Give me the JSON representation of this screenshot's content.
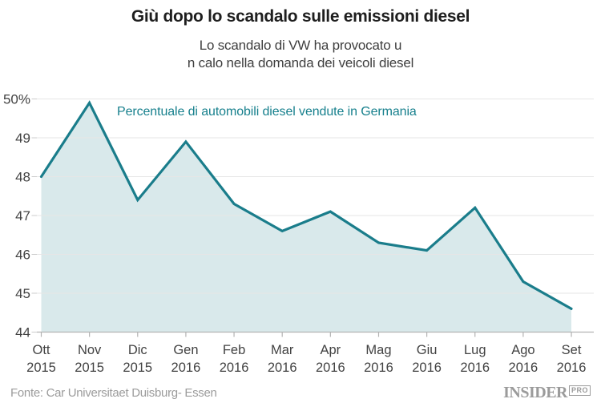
{
  "header": {
    "title": "Giù dopo lo scandalo sulle emissioni diesel",
    "subtitle_line1": "Lo scandalo di VW ha provocato u",
    "subtitle_line2": "n calo nella domanda dei veicoli diesel"
  },
  "chart_data": {
    "type": "area",
    "series_label": "Percentuale di automobili diesel vendute in Germania",
    "categories": [
      {
        "month": "Ott",
        "year": "2015"
      },
      {
        "month": "Nov",
        "year": "2015"
      },
      {
        "month": "Dic",
        "year": "2015"
      },
      {
        "month": "Gen",
        "year": "2016"
      },
      {
        "month": "Feb",
        "year": "2016"
      },
      {
        "month": "Mar",
        "year": "2016"
      },
      {
        "month": "Apr",
        "year": "2016"
      },
      {
        "month": "Mag",
        "year": "2016"
      },
      {
        "month": "Giu",
        "year": "2016"
      },
      {
        "month": "Lug",
        "year": "2016"
      },
      {
        "month": "Ago",
        "year": "2016"
      },
      {
        "month": "Set",
        "year": "2016"
      }
    ],
    "values": [
      48.0,
      49.9,
      47.4,
      48.9,
      47.3,
      46.6,
      47.1,
      46.3,
      46.1,
      47.2,
      45.3,
      44.6
    ],
    "unit": "%",
    "y_ticks": [
      {
        "value": 50,
        "label": "50%"
      },
      {
        "value": 49,
        "label": "49"
      },
      {
        "value": 48,
        "label": "48"
      },
      {
        "value": 47,
        "label": "47"
      },
      {
        "value": 46,
        "label": "46"
      },
      {
        "value": 45,
        "label": "45"
      },
      {
        "value": 44,
        "label": "44"
      }
    ],
    "ylim": [
      44,
      50.3
    ],
    "grid": true,
    "legend_position": "inside-top-left",
    "colors": {
      "line": "#1a7d8b",
      "fill": "rgba(27,125,139,0.17)",
      "gridline": "#e6e6e6",
      "axis_line": "#b3b3b3",
      "tick": "#cccccc",
      "axis_label": "#424242",
      "annotation": "#17808d"
    }
  },
  "footer": {
    "source": "Fonte: Car Universitaet Duisburg- Essen",
    "logo_text": "INSIDER",
    "logo_badge": "PRO"
  }
}
